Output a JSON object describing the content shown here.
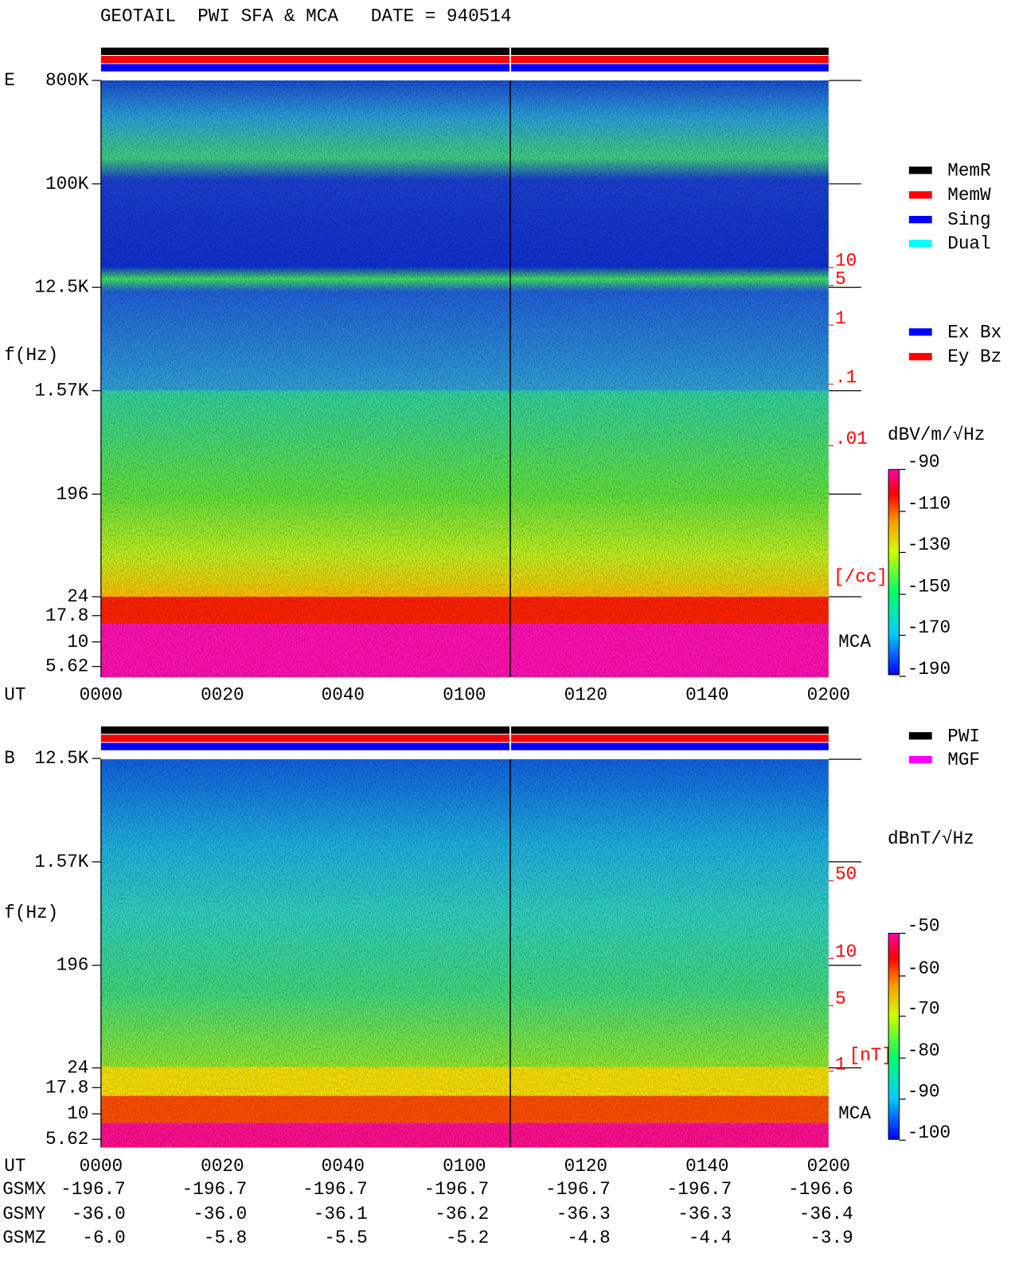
{
  "title": "GEOTAIL  PWI SFA & MCA   DATE = 940514",
  "panels": [
    {
      "label": "E",
      "y_axis_label": "f(Hz)",
      "y_tick_labels": [
        "800K",
        "100K",
        "12.5K",
        "1.57K",
        "196",
        "24",
        "17.8",
        "10",
        "5.62"
      ],
      "x_axis_label": "UT",
      "x_tick_labels": [
        "0000",
        "0020",
        "0040",
        "0100",
        "0120",
        "0140",
        "0200"
      ],
      "density_labels": [
        "10",
        "5",
        "1",
        ".1",
        ".01"
      ],
      "density_unit": "[/cc]",
      "mca_label": "MCA",
      "colorbar_title": "dBV/m/√Hz",
      "colorbar_labels": [
        "-90",
        "-110",
        "-130",
        "-150",
        "-170",
        "-190"
      ]
    },
    {
      "label": "B",
      "y_axis_label": "f(Hz)",
      "y_tick_labels": [
        "12.5K",
        "1.57K",
        "196",
        "24",
        "17.8",
        "10",
        "5.62"
      ],
      "x_axis_label": "UT",
      "x_tick_labels": [
        "0000",
        "0020",
        "0040",
        "0100",
        "0120",
        "0140",
        "0200"
      ],
      "density_labels": [
        "50",
        "10",
        "5",
        "1"
      ],
      "density_unit": "[nT]",
      "mca_label": "MCA",
      "colorbar_title": "dBnT/√Hz",
      "colorbar_labels": [
        "-50",
        "-60",
        "-70",
        "-80",
        "-90",
        "-100"
      ]
    }
  ],
  "legend_mode": [
    {
      "label": "MemR",
      "color": "#000000"
    },
    {
      "label": "MemW",
      "color": "#ff0000"
    },
    {
      "label": "Sing",
      "color": "#0000ff"
    },
    {
      "label": "Dual",
      "color": "#00ffff"
    }
  ],
  "legend_antenna": [
    {
      "label": "Ex Bx",
      "color": "#0000ff"
    },
    {
      "label": "Ey Bz",
      "color": "#ff0000"
    }
  ],
  "legend_instrument": [
    {
      "label": "PWI",
      "color": "#000000"
    },
    {
      "label": "MGF",
      "color": "#ff00ff"
    }
  ],
  "ephemeris": [
    {
      "name": "GSMX",
      "values": [
        "-196.7",
        "-196.7",
        "-196.7",
        "-196.7",
        "-196.7",
        "-196.7",
        "-196.6"
      ]
    },
    {
      "name": "GSMY",
      "values": [
        "-36.0",
        "-36.0",
        "-36.1",
        "-36.2",
        "-36.3",
        "-36.3",
        "-36.4"
      ]
    },
    {
      "name": "GSMZ",
      "values": [
        "-6.0",
        "-5.8",
        "-5.5",
        "-5.2",
        "-4.8",
        "-4.4",
        "-3.9"
      ]
    }
  ]
}
